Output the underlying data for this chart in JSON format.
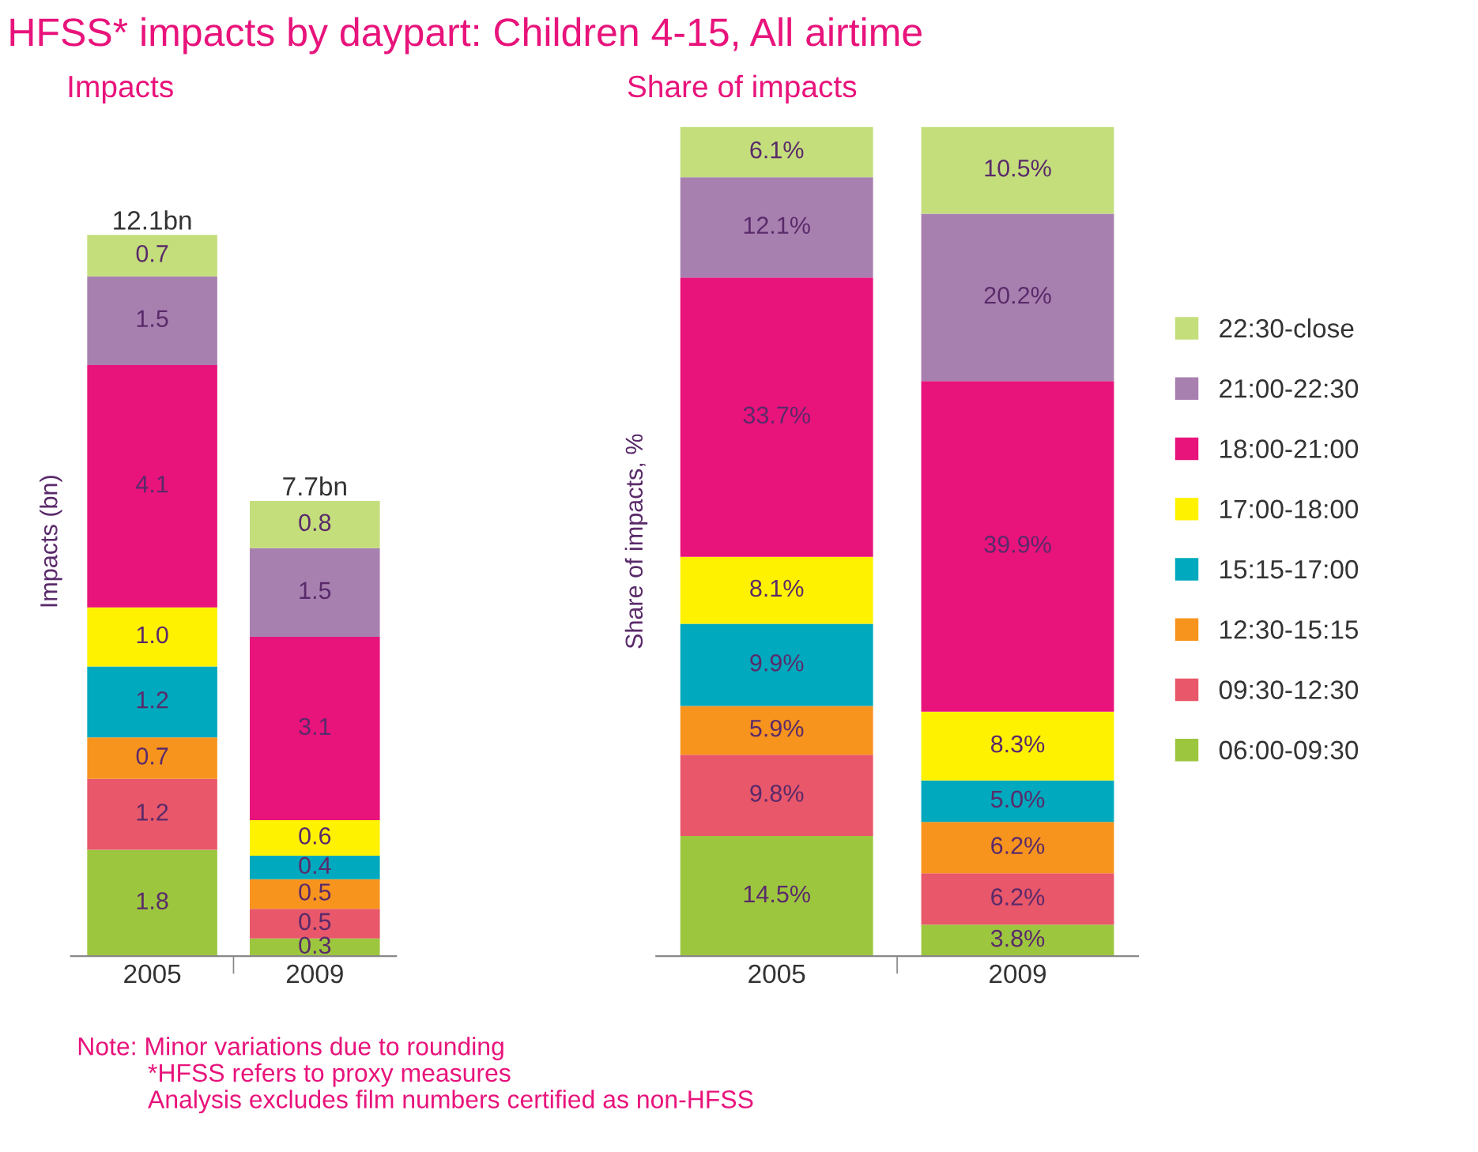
{
  "chart_data": [
    {
      "type": "bar",
      "title": "HFSS* impacts by daypart: Children 4-15, All airtime",
      "subtitle": "Impacts",
      "ylabel": "Impacts (bn)",
      "categories": [
        "2005",
        "2009"
      ],
      "stacked": true,
      "tick_labels": "x",
      "series": [
        {
          "color": "#9dc63f",
          "values": [
            1.8,
            0.3
          ],
          "value_labels": [
            "1.8",
            "0.3"
          ]
        },
        {
          "color": "#e8576a",
          "values": [
            1.2,
            0.5
          ],
          "value_labels": [
            "1.2",
            "0.5"
          ]
        },
        {
          "color": "#f7941e",
          "values": [
            0.7,
            0.5
          ],
          "value_labels": [
            "0.7",
            "0.5"
          ]
        },
        {
          "color": "#00a9bd",
          "values": [
            1.2,
            0.4
          ],
          "value_labels": [
            "1.2",
            "0.4"
          ]
        },
        {
          "color": "#fff200",
          "values": [
            1.0,
            0.6
          ],
          "value_labels": [
            "1.0",
            "0.6"
          ]
        },
        {
          "color": "#e8137b",
          "values": [
            4.1,
            3.1
          ],
          "value_labels": [
            "4.1",
            "3.1"
          ]
        },
        {
          "color": "#a880b0",
          "values": [
            1.5,
            1.5
          ],
          "value_labels": [
            "1.5",
            "1.5"
          ]
        },
        {
          "color": "#c4de7c",
          "values": [
            0.7,
            0.8
          ],
          "value_labels": [
            "0.7",
            "0.8"
          ]
        }
      ],
      "totals": [
        "12.1bn",
        "7.7bn"
      ],
      "annotations": [
        "Note: Minor variations due to rounding",
        "*HFSS refers to proxy measures",
        "Analysis excludes film numbers certified as non-HFSS"
      ]
    },
    {
      "type": "bar",
      "title": "Share of impacts",
      "ylabel": "Share of impacts, %",
      "categories": [
        "2005",
        "2009"
      ],
      "stacked": true,
      "tick_labels": "x",
      "legend": "right",
      "series": [
        {
          "name": "06:00-09:30",
          "color": "#9dc63f",
          "values": [
            14.5,
            3.8
          ],
          "value_labels": [
            "14.5%",
            "3.8%"
          ]
        },
        {
          "name": "09:30-12:30",
          "color": "#e8576a",
          "values": [
            9.8,
            6.2
          ],
          "value_labels": [
            "9.8%",
            "6.2%"
          ]
        },
        {
          "name": "12:30-15:15",
          "color": "#f7941e",
          "values": [
            5.9,
            6.2
          ],
          "value_labels": [
            "5.9%",
            "6.2%"
          ]
        },
        {
          "name": "15:15-17:00",
          "color": "#00a9bd",
          "values": [
            9.9,
            5.0
          ],
          "value_labels": [
            "9.9%",
            "5.0%"
          ]
        },
        {
          "name": "17:00-18:00",
          "color": "#fff200",
          "values": [
            8.1,
            8.3
          ],
          "value_labels": [
            "8.1%",
            "8.3%"
          ]
        },
        {
          "name": "18:00-21:00",
          "color": "#e8137b",
          "values": [
            33.7,
            39.9
          ],
          "value_labels": [
            "33.7%",
            "39.9%"
          ]
        },
        {
          "name": "21:00-22:30",
          "color": "#a880b0",
          "values": [
            12.1,
            20.2
          ],
          "value_labels": [
            "12.1%",
            "20.2%"
          ]
        },
        {
          "name": "22:30-close",
          "color": "#c4de7c",
          "values": [
            6.1,
            10.5
          ],
          "value_labels": [
            "6.1%",
            "10.5%"
          ]
        }
      ]
    }
  ]
}
